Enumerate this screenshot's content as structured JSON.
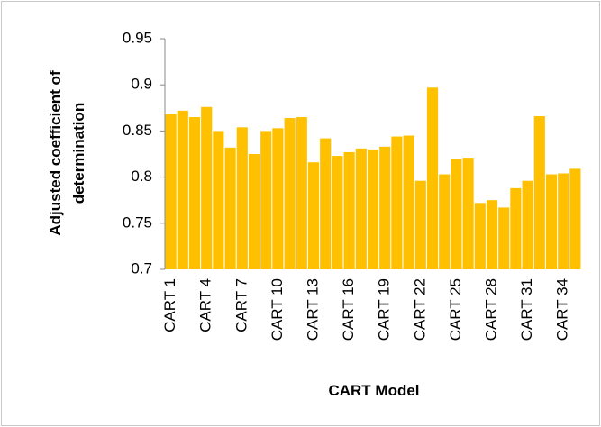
{
  "chart_data": {
    "type": "bar",
    "ylabel": "Adjusted coefficient of determination",
    "xlabel": "CART Model",
    "categories": [
      "CART 1",
      null,
      null,
      "CART 4",
      null,
      null,
      "CART 7",
      null,
      null,
      "CART 10",
      null,
      null,
      "CART 13",
      null,
      null,
      "CART 16",
      null,
      null,
      "CART 19",
      null,
      null,
      "CART 22",
      null,
      null,
      "CART 25",
      null,
      null,
      "CART 28",
      null,
      null,
      "CART 31",
      null,
      null,
      "CART 34",
      null
    ],
    "values": [
      0.868,
      0.872,
      0.865,
      0.876,
      0.85,
      0.832,
      0.854,
      0.825,
      0.85,
      0.853,
      0.864,
      0.865,
      0.816,
      0.842,
      0.823,
      0.827,
      0.831,
      0.83,
      0.833,
      0.844,
      0.845,
      0.796,
      0.897,
      0.803,
      0.82,
      0.821,
      0.772,
      0.775,
      0.767,
      0.788,
      0.796,
      0.866,
      0.803,
      0.804,
      0.809
    ],
    "color": "#ffc000",
    "ylim": [
      0.7,
      0.95
    ],
    "yticks": [
      0.7,
      0.75,
      0.8,
      0.85,
      0.9,
      0.95
    ],
    "grid": false
  }
}
